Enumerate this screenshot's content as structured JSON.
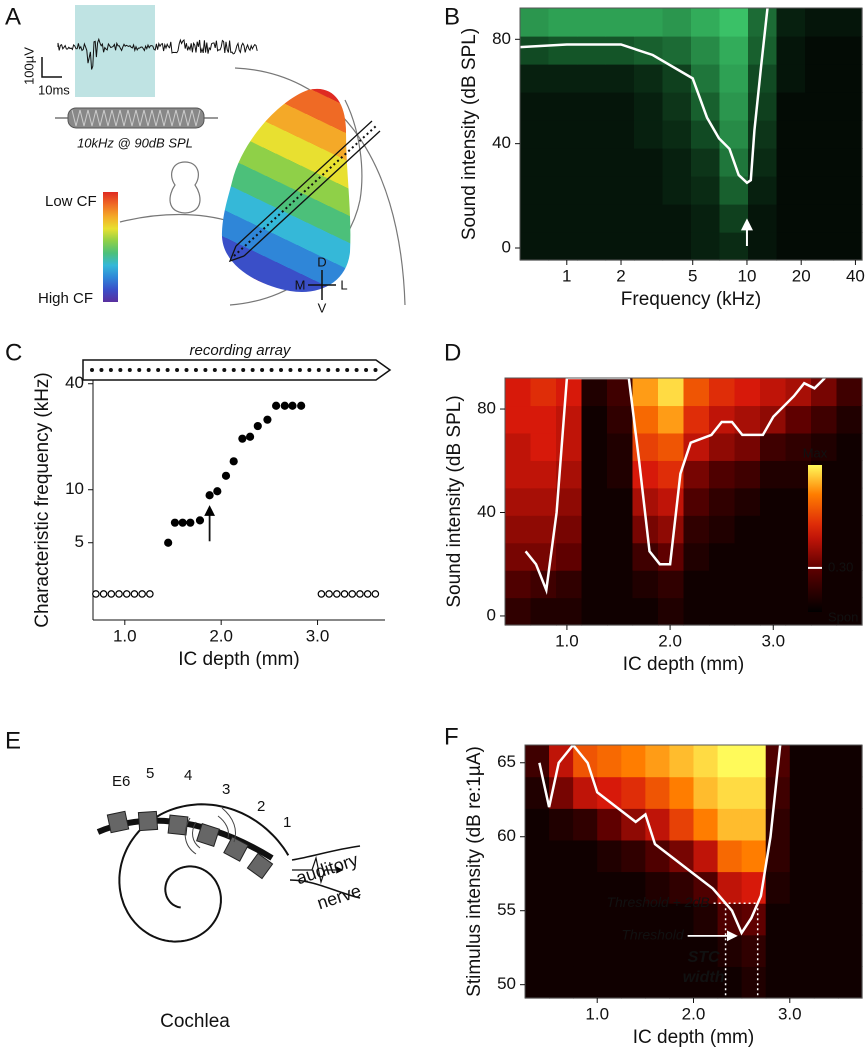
{
  "panel_a": {
    "label": "A",
    "amplitude_scale": "100µV",
    "time_scale": "10ms",
    "stimulus": "10kHz @ 90dB SPL",
    "colorbar_top": "Low CF",
    "colorbar_bottom": "High CF",
    "compass": {
      "dorsal": "D",
      "medial": "M",
      "lateral": "L",
      "ventral": "V"
    }
  },
  "panel_e": {
    "label": "E",
    "electrodes": [
      "E6",
      "5",
      "4",
      "3",
      "2",
      "1"
    ],
    "nerve_label_1": "auditory",
    "nerve_label_2": "nerve",
    "caption": "Cochlea"
  },
  "chart_data": [
    {
      "panel": "B",
      "type": "heatmap",
      "colormap": "green",
      "xlabel": "Frequency (kHz)",
      "ylabel": "Sound intensity (dB SPL)",
      "xscale": "log",
      "xlim": [
        0.55,
        43.5
      ],
      "ylim": [
        -4.6,
        92
      ],
      "xticks": [
        1,
        2,
        5,
        10,
        20,
        40
      ],
      "yticks": [
        0,
        40,
        80
      ],
      "z": [
        [
          0.1,
          0.1,
          0.1,
          0.1,
          0.1,
          0.1,
          0.15,
          0.2,
          0.1,
          0.05,
          0.05,
          0.05
        ],
        [
          0.1,
          0.1,
          0.1,
          0.1,
          0.1,
          0.1,
          0.15,
          0.3,
          0.1,
          0.05,
          0.05,
          0.05
        ],
        [
          0.1,
          0.1,
          0.1,
          0.1,
          0.1,
          0.15,
          0.2,
          0.45,
          0.15,
          0.05,
          0.05,
          0.05
        ],
        [
          0.1,
          0.1,
          0.1,
          0.1,
          0.1,
          0.15,
          0.25,
          0.55,
          0.2,
          0.05,
          0.05,
          0.05
        ],
        [
          0.1,
          0.1,
          0.1,
          0.1,
          0.15,
          0.2,
          0.35,
          0.65,
          0.25,
          0.05,
          0.05,
          0.05
        ],
        [
          0.1,
          0.1,
          0.1,
          0.1,
          0.15,
          0.25,
          0.45,
          0.7,
          0.3,
          0.05,
          0.05,
          0.05
        ],
        [
          0.15,
          0.15,
          0.15,
          0.15,
          0.2,
          0.3,
          0.55,
          0.75,
          0.35,
          0.1,
          0.05,
          0.05
        ],
        [
          0.35,
          0.4,
          0.4,
          0.4,
          0.45,
          0.5,
          0.65,
          0.8,
          0.45,
          0.1,
          0.05,
          0.05
        ],
        [
          0.7,
          0.75,
          0.75,
          0.75,
          0.75,
          0.7,
          0.8,
          0.9,
          0.5,
          0.15,
          0.1,
          0.1
        ]
      ],
      "curve": {
        "color": "#ffffff",
        "x": [
          0.55,
          1,
          2,
          3,
          5,
          6,
          7,
          8,
          9,
          10,
          10.5,
          11,
          12,
          13
        ],
        "y": [
          77,
          78,
          78,
          74,
          65,
          50,
          42,
          38,
          28,
          25,
          26,
          45,
          70,
          92
        ]
      }
    },
    {
      "panel": "C",
      "type": "scatter",
      "array_label": "recording array",
      "xlabel": "IC depth (mm)",
      "ylabel": "Characteristic frequency (kHz)",
      "xlim": [
        0.67,
        3.7
      ],
      "ylim": [
        1.82,
        42
      ],
      "yscale": "log",
      "xticks": [
        {
          "value": 1,
          "label": "1.0"
        },
        {
          "value": 2,
          "label": "2.0"
        },
        {
          "value": 3,
          "label": "3.0"
        }
      ],
      "yticks": [
        5,
        10,
        40
      ],
      "series": [
        {
          "marker": "filled",
          "color": "#000000",
          "x": [
            1.45,
            1.52,
            1.6,
            1.68,
            1.78,
            1.88,
            1.96,
            2.05,
            2.13,
            2.22,
            2.3,
            2.38,
            2.48,
            2.57,
            2.66,
            2.74,
            2.83
          ],
          "values": [
            5,
            6.5,
            6.5,
            6.5,
            6.7,
            9.3,
            9.8,
            12,
            14.5,
            19.5,
            20,
            23,
            25,
            30,
            30,
            30,
            30
          ]
        },
        {
          "marker": "open",
          "color": "#000000",
          "x": [
            0.7,
            0.78,
            0.86,
            0.94,
            1.02,
            1.1,
            1.18,
            1.26,
            3.04,
            3.12,
            3.2,
            3.28,
            3.36,
            3.44,
            3.52,
            3.6
          ],
          "values": [
            2.56,
            2.56,
            2.56,
            2.56,
            2.56,
            2.56,
            2.56,
            2.56,
            2.56,
            2.56,
            2.56,
            2.56,
            2.56,
            2.56,
            2.56,
            2.56
          ]
        }
      ]
    },
    {
      "panel": "D",
      "type": "heatmap",
      "colormap": "hot",
      "xlabel": "IC depth (mm)",
      "ylabel": "Sound intensity (dB SPL)",
      "xlim": [
        0.4,
        3.86
      ],
      "ylim": [
        -3.5,
        92
      ],
      "xticks": [
        {
          "value": 1,
          "label": "1.0"
        },
        {
          "value": 2,
          "label": "2.0"
        },
        {
          "value": 3,
          "label": "3.0"
        }
      ],
      "yticks": [
        0,
        40,
        80
      ],
      "z": [
        [
          0.15,
          0.1,
          0.1,
          0.05,
          0.05,
          0.05,
          0.1,
          0.05,
          0.05,
          0.05,
          0.05,
          0.05,
          0.05,
          0.05
        ],
        [
          0.25,
          0.2,
          0.15,
          0.05,
          0.05,
          0.1,
          0.15,
          0.05,
          0.05,
          0.05,
          0.05,
          0.05,
          0.05,
          0.05
        ],
        [
          0.35,
          0.35,
          0.3,
          0.05,
          0.05,
          0.2,
          0.3,
          0.1,
          0.05,
          0.05,
          0.05,
          0.05,
          0.05,
          0.05
        ],
        [
          0.4,
          0.4,
          0.35,
          0.05,
          0.05,
          0.35,
          0.4,
          0.15,
          0.1,
          0.05,
          0.05,
          0.05,
          0.05,
          0.05
        ],
        [
          0.45,
          0.45,
          0.4,
          0.05,
          0.05,
          0.45,
          0.5,
          0.25,
          0.15,
          0.1,
          0.05,
          0.05,
          0.05,
          0.05
        ],
        [
          0.5,
          0.5,
          0.45,
          0.05,
          0.1,
          0.55,
          0.6,
          0.35,
          0.25,
          0.2,
          0.1,
          0.1,
          0.05,
          0.05
        ],
        [
          0.5,
          0.55,
          0.5,
          0.05,
          0.1,
          0.65,
          0.7,
          0.5,
          0.4,
          0.35,
          0.2,
          0.15,
          0.1,
          0.05
        ],
        [
          0.55,
          0.55,
          0.5,
          0.05,
          0.15,
          0.75,
          0.85,
          0.6,
          0.5,
          0.45,
          0.4,
          0.3,
          0.2,
          0.1
        ],
        [
          0.55,
          0.6,
          0.55,
          0.1,
          0.2,
          0.85,
          0.95,
          0.7,
          0.6,
          0.55,
          0.5,
          0.45,
          0.35,
          0.2
        ]
      ],
      "clim": [
        0,
        1
      ],
      "colorbar": {
        "top_label": "Max",
        "bottom_label": "Spon",
        "ticks": [
          {
            "value": 0.3,
            "label": "0.30"
          }
        ]
      },
      "curve": {
        "color": "#ffffff",
        "x": [
          0.6,
          0.7,
          0.8,
          0.9,
          1.0,
          1.6,
          1.7,
          1.8,
          1.9,
          2.0,
          2.1,
          2.2,
          2.4,
          2.5,
          2.6,
          2.7,
          2.9,
          3.0,
          3.2,
          3.3,
          3.4,
          3.5
        ],
        "y": [
          25,
          20,
          10,
          40,
          92,
          92,
          60,
          25,
          20,
          20,
          55,
          67,
          70,
          75,
          75,
          70,
          70,
          77,
          85,
          90,
          88,
          92
        ]
      }
    },
    {
      "panel": "F",
      "type": "heatmap",
      "colormap": "hot",
      "xlabel": "IC depth (mm)",
      "ylabel": "Stimulus intensity (dB re:1µA)",
      "xlim": [
        0.25,
        3.75
      ],
      "ylim": [
        49.1,
        66.2
      ],
      "xticks": [
        {
          "value": 1,
          "label": "1.0"
        },
        {
          "value": 2,
          "label": "2.0"
        },
        {
          "value": 3,
          "label": "3.0"
        }
      ],
      "yticks": [
        50,
        55,
        60,
        65
      ],
      "z": [
        [
          0.05,
          0.05,
          0.05,
          0.05,
          0.05,
          0.05,
          0.05,
          0.05,
          0.05,
          0.1,
          0.05,
          0.05,
          0.05,
          0.05
        ],
        [
          0.05,
          0.05,
          0.05,
          0.05,
          0.05,
          0.05,
          0.05,
          0.05,
          0.1,
          0.15,
          0.05,
          0.05,
          0.05,
          0.05
        ],
        [
          0.05,
          0.05,
          0.05,
          0.05,
          0.05,
          0.05,
          0.05,
          0.1,
          0.25,
          0.3,
          0.05,
          0.05,
          0.05,
          0.05
        ],
        [
          0.05,
          0.05,
          0.05,
          0.05,
          0.05,
          0.1,
          0.15,
          0.25,
          0.5,
          0.55,
          0.1,
          0.05,
          0.05,
          0.05
        ],
        [
          0.05,
          0.05,
          0.05,
          0.1,
          0.15,
          0.25,
          0.35,
          0.5,
          0.75,
          0.8,
          0.15,
          0.05,
          0.05,
          0.05
        ],
        [
          0.05,
          0.1,
          0.15,
          0.3,
          0.4,
          0.5,
          0.65,
          0.8,
          0.9,
          0.9,
          0.15,
          0.05,
          0.05,
          0.05
        ],
        [
          0.1,
          0.35,
          0.5,
          0.55,
          0.6,
          0.7,
          0.8,
          0.9,
          0.95,
          0.95,
          0.2,
          0.05,
          0.05,
          0.05
        ],
        [
          0.2,
          0.5,
          0.7,
          0.75,
          0.8,
          0.85,
          0.9,
          0.95,
          1,
          1,
          0.25,
          0.05,
          0.05,
          0.05
        ]
      ],
      "curve": {
        "color": "#ffffff",
        "x": [
          0.4,
          0.5,
          0.6,
          0.75,
          0.9,
          1.0,
          1.2,
          1.4,
          1.5,
          1.6,
          1.8,
          2.0,
          2.2,
          2.4,
          2.5,
          2.6,
          2.7,
          2.8,
          2.9
        ],
        "y": [
          65,
          62,
          65,
          66.2,
          65,
          63,
          62,
          61,
          61.5,
          59.5,
          58.5,
          57.5,
          56.5,
          55,
          53.5,
          54.5,
          56,
          60,
          66.2
        ]
      },
      "threshold_offset_db": 2,
      "annotations": {
        "threshold_plus": "Threshold + 2dB",
        "threshold": "Threshold",
        "width_line_1": "STC",
        "width_line_2": "width"
      }
    }
  ]
}
